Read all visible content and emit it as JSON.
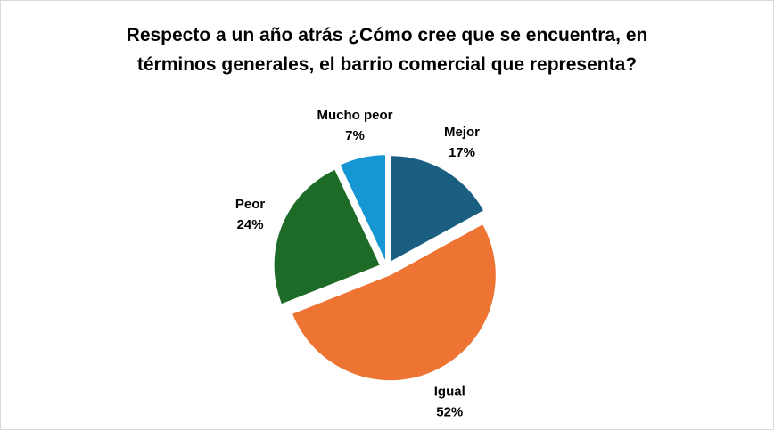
{
  "chart_data": {
    "type": "pie",
    "title": "Respecto a un año atrás ¿Cómo cree que se encuentra, en términos generales, el barrio comercial que representa?",
    "categories": [
      "Mejor",
      "Igual",
      "Peor",
      "Mucho peor"
    ],
    "values": [
      17,
      52,
      24,
      7
    ],
    "value_labels": [
      "17%",
      "52%",
      "24%",
      "7%"
    ],
    "colors": [
      "#1a5f82",
      "#ed7432",
      "#1e6b27",
      "#1696d2"
    ]
  }
}
